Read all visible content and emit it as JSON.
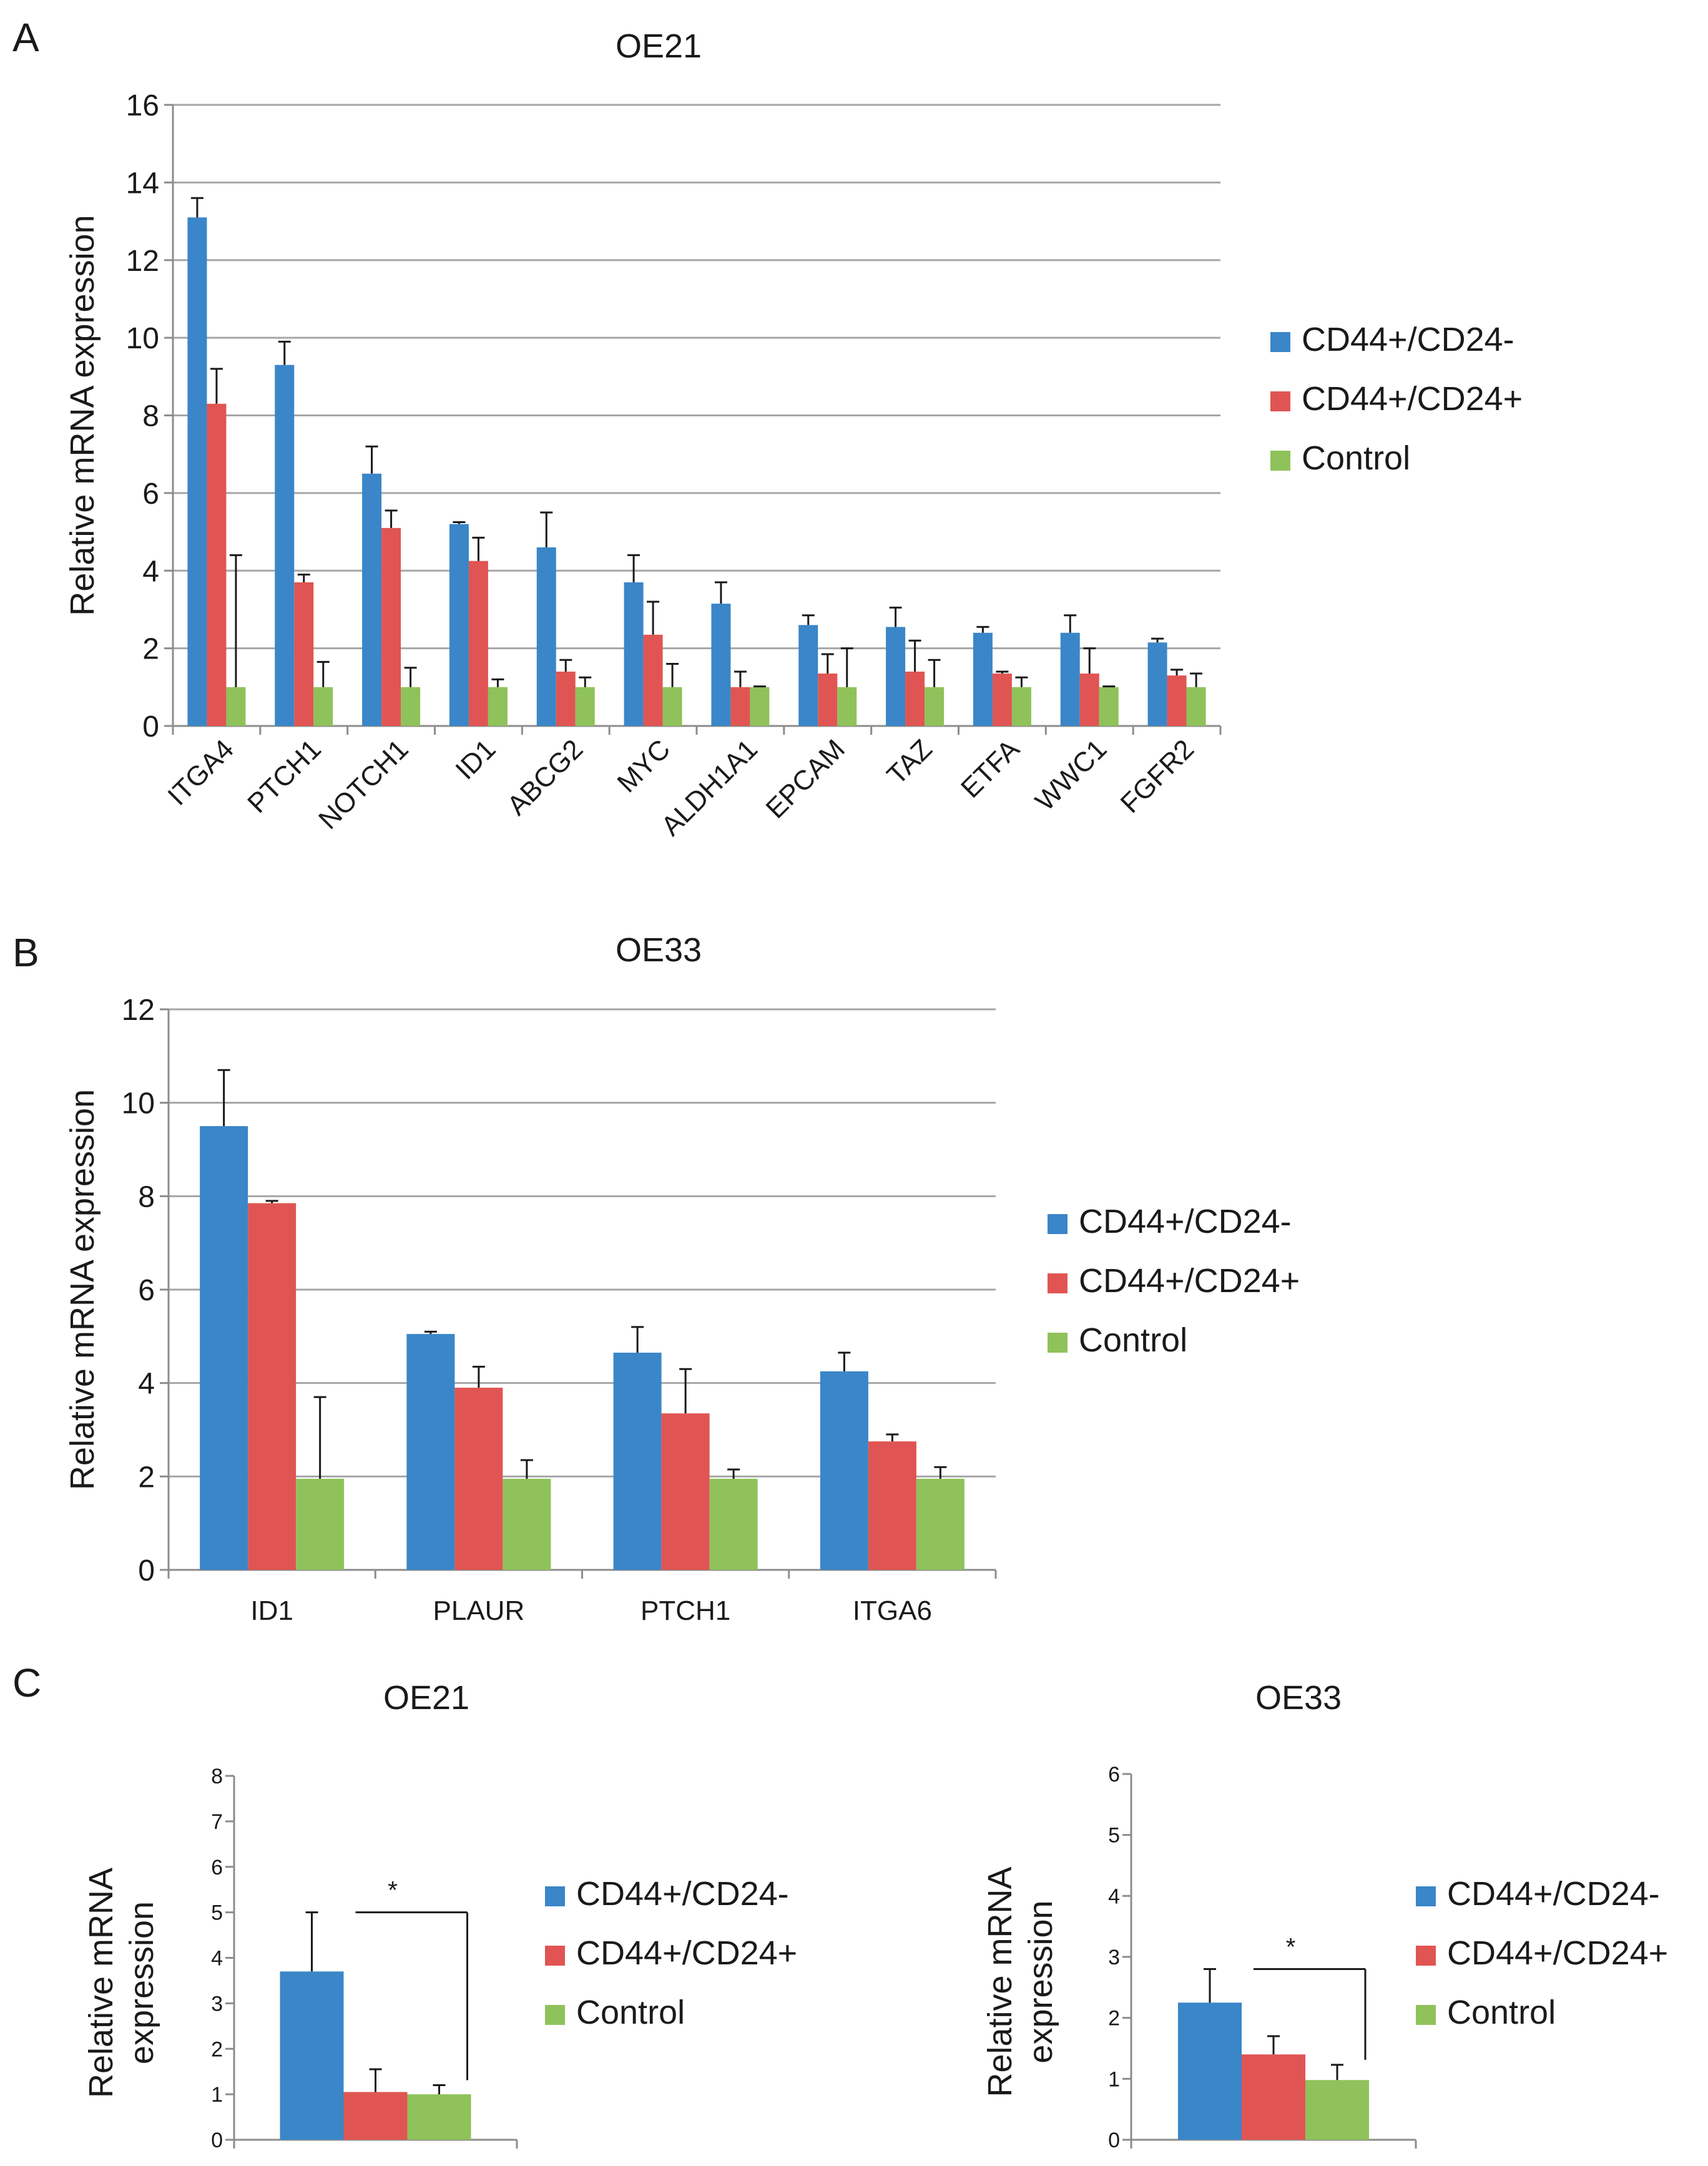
{
  "panels": {
    "A": "A",
    "B": "B",
    "C": "C"
  },
  "colors": {
    "CD44+/CD24-": "#3a86c8",
    "CD44+/CD24+": "#e05553",
    "Control": "#8fc25a",
    "grid": "#a6a6a6",
    "axis": "#8c8c8c",
    "errorbar": "#1a1a1a"
  },
  "chart_data": [
    {
      "id": "A",
      "type": "bar",
      "title": "OE21",
      "ylabel": "Relative mRNA expression",
      "xlabel": "",
      "ylim": [
        0,
        16
      ],
      "yticks": [
        0,
        2,
        4,
        6,
        8,
        10,
        12,
        14,
        16
      ],
      "grid": true,
      "legend": "right",
      "categories": [
        "ITGA4",
        "PTCH1",
        "NOTCH1",
        "ID1",
        "ABCG2",
        "MYC",
        "ALDH1A1",
        "EPCAM",
        "TAZ",
        "ETFA",
        "WWC1",
        "FGFR2"
      ],
      "series": [
        {
          "name": "CD44+/CD24-",
          "values": [
            13.1,
            9.3,
            6.5,
            5.2,
            4.6,
            3.7,
            3.15,
            2.6,
            2.55,
            2.4,
            2.4,
            2.15
          ],
          "errors": [
            0.5,
            0.6,
            0.7,
            0.05,
            0.9,
            0.7,
            0.55,
            0.25,
            0.5,
            0.15,
            0.45,
            0.1
          ]
        },
        {
          "name": "CD44+/CD24+",
          "values": [
            8.3,
            3.7,
            5.1,
            4.25,
            1.4,
            2.35,
            1.0,
            1.35,
            1.4,
            1.35,
            1.35,
            1.3
          ],
          "errors": [
            0.9,
            0.2,
            0.45,
            0.6,
            0.3,
            0.85,
            0.4,
            0.5,
            0.8,
            0.05,
            0.65,
            0.15
          ]
        },
        {
          "name": "Control",
          "values": [
            1.0,
            1.0,
            1.0,
            1.0,
            1.0,
            1.0,
            1.0,
            1.0,
            1.0,
            1.0,
            1.0,
            1.0
          ],
          "errors": [
            3.4,
            0.65,
            0.5,
            0.2,
            0.25,
            0.6,
            0.02,
            1.0,
            0.7,
            0.25,
            0.02,
            0.35
          ]
        }
      ]
    },
    {
      "id": "B",
      "type": "bar",
      "title": "OE33",
      "ylabel": "Relative mRNA expression",
      "xlabel": "",
      "ylim": [
        0,
        12
      ],
      "yticks": [
        0,
        2,
        4,
        6,
        8,
        10,
        12
      ],
      "grid": true,
      "legend": "right",
      "categories": [
        "ID1",
        "PLAUR",
        "PTCH1",
        "ITGA6"
      ],
      "series": [
        {
          "name": "CD44+/CD24-",
          "values": [
            9.5,
            5.05,
            4.65,
            4.25
          ],
          "errors": [
            1.2,
            0.05,
            0.55,
            0.4
          ]
        },
        {
          "name": "CD44+/CD24+",
          "values": [
            7.85,
            3.9,
            3.35,
            2.75
          ],
          "errors": [
            0.05,
            0.45,
            0.95,
            0.15
          ]
        },
        {
          "name": "Control",
          "values": [
            1.95,
            1.95,
            1.95,
            1.95
          ],
          "errors": [
            1.75,
            0.4,
            0.2,
            0.25
          ]
        }
      ]
    },
    {
      "id": "C1",
      "type": "bar",
      "title": "OE21",
      "ylabel": "Relative mRNA expression",
      "ylabel_lines": [
        "Relative mRNA",
        "expression"
      ],
      "xlabel": "",
      "ylim": [
        0,
        8
      ],
      "yticks": [
        0,
        1,
        2,
        3,
        4,
        5,
        6,
        7,
        8
      ],
      "grid": false,
      "legend": "right",
      "categories": [
        ""
      ],
      "significance": "*",
      "series": [
        {
          "name": "CD44+/CD24-",
          "values": [
            3.7
          ],
          "errors": [
            1.3
          ]
        },
        {
          "name": "CD44+/CD24+",
          "values": [
            1.05
          ],
          "errors": [
            0.5
          ]
        },
        {
          "name": "Control",
          "values": [
            1.0
          ],
          "errors": [
            0.2
          ]
        }
      ]
    },
    {
      "id": "C2",
      "type": "bar",
      "title": "OE33",
      "ylabel": "Relative mRNA expression",
      "ylabel_lines": [
        "Relative mRNA",
        "expression"
      ],
      "xlabel": "",
      "ylim": [
        0,
        6
      ],
      "yticks": [
        0,
        1,
        2,
        3,
        4,
        5,
        6
      ],
      "grid": false,
      "legend": "right",
      "categories": [
        ""
      ],
      "significance": "*",
      "series": [
        {
          "name": "CD44+/CD24-",
          "values": [
            2.25
          ],
          "errors": [
            0.55
          ]
        },
        {
          "name": "CD44+/CD24+",
          "values": [
            1.4
          ],
          "errors": [
            0.3
          ]
        },
        {
          "name": "Control",
          "values": [
            0.98
          ],
          "errors": [
            0.25
          ]
        }
      ]
    }
  ]
}
